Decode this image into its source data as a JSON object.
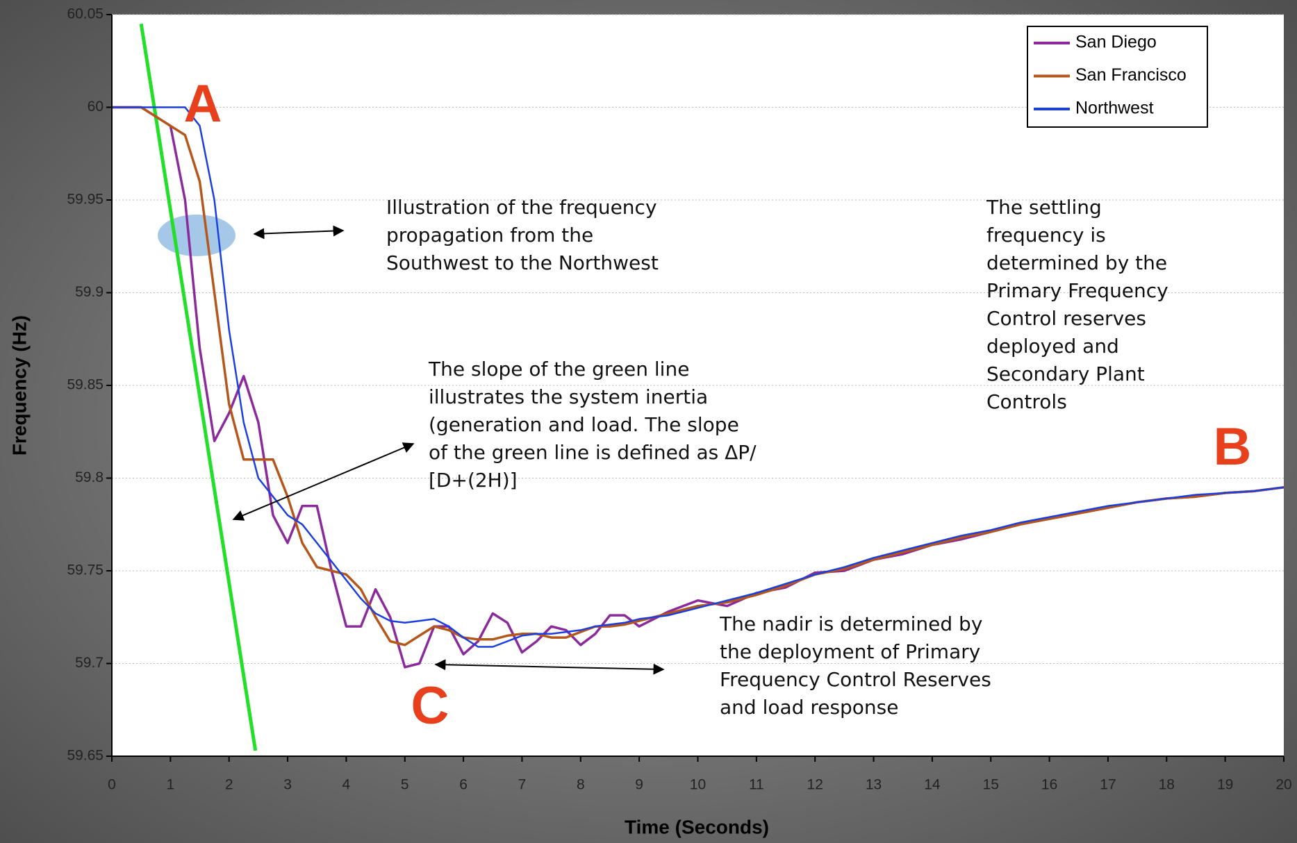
{
  "chart_data": {
    "type": "line",
    "x_label": "Time (Seconds)",
    "y_label": "Frequency (Hz)",
    "x": [
      0,
      0.5,
      1,
      1.25,
      1.5,
      1.75,
      2,
      2.25,
      2.5,
      2.75,
      3,
      3.25,
      3.5,
      3.75,
      4,
      4.25,
      4.5,
      4.75,
      5,
      5.25,
      5.5,
      5.75,
      6,
      6.25,
      6.5,
      6.75,
      7,
      7.25,
      7.5,
      7.75,
      8,
      8.25,
      8.5,
      8.75,
      9,
      9.5,
      10,
      10.5,
      11,
      11.5,
      12,
      12.5,
      13,
      13.5,
      14,
      14.5,
      15,
      15.5,
      16,
      16.5,
      17,
      17.5,
      18,
      18.5,
      19,
      19.5,
      20
    ],
    "series": [
      {
        "name": "San Diego",
        "color": "#8b2a9b",
        "values": [
          60,
          60,
          59.99,
          59.95,
          59.87,
          59.82,
          59.835,
          59.855,
          59.83,
          59.78,
          59.765,
          59.785,
          59.785,
          59.75,
          59.72,
          59.72,
          59.74,
          59.725,
          59.698,
          59.7,
          59.72,
          59.72,
          59.705,
          59.712,
          59.727,
          59.722,
          59.706,
          59.712,
          59.72,
          59.718,
          59.71,
          59.716,
          59.726,
          59.726,
          59.72,
          59.728,
          59.734,
          59.731,
          59.738,
          59.741,
          59.749,
          59.75,
          59.756,
          59.759,
          59.764,
          59.767,
          59.771,
          59.775,
          59.778,
          59.781,
          59.784,
          59.787,
          59.789,
          59.79,
          59.792,
          59.793,
          59.795
        ]
      },
      {
        "name": "San Francisco",
        "color": "#b5561a",
        "values": [
          60,
          60,
          59.99,
          59.985,
          59.96,
          59.9,
          59.84,
          59.81,
          59.81,
          59.81,
          59.79,
          59.765,
          59.752,
          59.75,
          59.748,
          59.74,
          59.725,
          59.712,
          59.71,
          59.715,
          59.72,
          59.718,
          59.714,
          59.713,
          59.713,
          59.715,
          59.716,
          59.716,
          59.714,
          59.714,
          59.717,
          59.72,
          59.72,
          59.721,
          59.723,
          59.727,
          59.731,
          59.733,
          59.737,
          59.742,
          59.748,
          59.751,
          59.756,
          59.76,
          59.764,
          59.768,
          59.771,
          59.775,
          59.778,
          59.781,
          59.784,
          59.787,
          59.789,
          59.79,
          59.792,
          59.793,
          59.795
        ]
      },
      {
        "name": "Northwest",
        "color": "#1a3fe0",
        "values": [
          60,
          60,
          60,
          60,
          59.99,
          59.95,
          59.88,
          59.83,
          59.8,
          59.79,
          59.78,
          59.775,
          59.765,
          59.755,
          59.745,
          59.735,
          59.727,
          59.723,
          59.722,
          59.723,
          59.724,
          59.72,
          59.714,
          59.709,
          59.709,
          59.712,
          59.715,
          59.716,
          59.716,
          59.717,
          59.718,
          59.72,
          59.721,
          59.722,
          59.724,
          59.726,
          59.73,
          59.734,
          59.738,
          59.743,
          59.748,
          59.752,
          59.757,
          59.761,
          59.765,
          59.769,
          59.772,
          59.776,
          59.779,
          59.782,
          59.785,
          59.787,
          59.789,
          59.791,
          59.792,
          59.793,
          59.795
        ]
      }
    ],
    "inertia_line": {
      "color": "#22e02a",
      "x": [
        0.5,
        2.45
      ],
      "values": [
        60.045,
        59.653
      ]
    },
    "xlim": [
      0,
      20
    ],
    "xticks": [
      0,
      1,
      2,
      3,
      4,
      5,
      6,
      7,
      8,
      9,
      10,
      11,
      12,
      13,
      14,
      15,
      16,
      17,
      18,
      19,
      20
    ],
    "ylim": [
      59.65,
      60.05
    ],
    "yticks": [
      59.65,
      59.7,
      59.75,
      59.8,
      59.85,
      59.9,
      59.95,
      60,
      60.05
    ],
    "grid": true,
    "legend": "top-right",
    "markers": [
      "A",
      "B",
      "C"
    ],
    "annotations": [
      {
        "lines": [
          "Illustration of the frequency",
          "propagation from the",
          "Southwest to the Northwest"
        ]
      },
      {
        "lines": [
          "The slope of the green line",
          "illustrates the system inertia",
          "(generation and load. The slope",
          "of the green line is defined as ΔP/",
          "[D+(2H)]"
        ]
      },
      {
        "lines": [
          "The settling",
          "frequency is",
          "determined by the",
          "Primary Frequency",
          "Control reserves",
          "deployed and",
          "Secondary Plant",
          "Controls"
        ]
      },
      {
        "lines": [
          "The nadir is determined by",
          "the deployment of Primary",
          "Frequency Control Reserves",
          "and load response"
        ]
      }
    ]
  }
}
